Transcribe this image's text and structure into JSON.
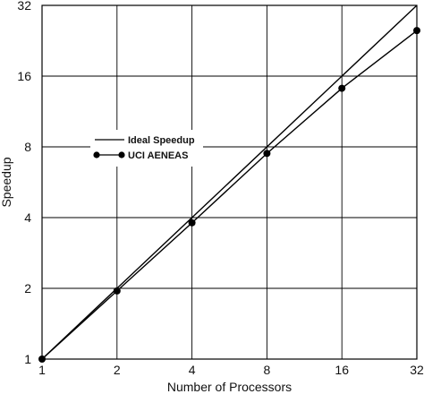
{
  "chart_data": {
    "type": "line",
    "title": "",
    "xlabel": "Number of Processors",
    "ylabel": "Speedup",
    "scale": "log2",
    "grid": true,
    "legend_position": "left-middle",
    "xlim": [
      1,
      32
    ],
    "ylim": [
      1,
      32
    ],
    "x_ticks": [
      "1",
      "2",
      "4",
      "8",
      "16",
      "32"
    ],
    "y_ticks": [
      "1",
      "2",
      "4",
      "8",
      "16",
      "32"
    ],
    "series": [
      {
        "name": "Ideal Speedup",
        "marker": "none",
        "color": "#000000",
        "x": [
          1,
          32
        ],
        "y": [
          1,
          32
        ]
      },
      {
        "name": "UCI AENEAS",
        "marker": "circle",
        "color": "#000000",
        "x": [
          1,
          2,
          4,
          8,
          16,
          32
        ],
        "y": [
          1,
          1.95,
          3.8,
          7.5,
          14.2,
          25.0
        ]
      }
    ]
  }
}
